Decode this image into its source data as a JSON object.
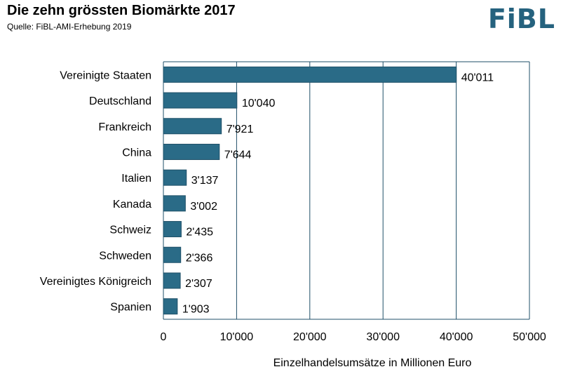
{
  "header": {
    "title": "Die zehn grössten Biomärkte 2017",
    "subtitle": "Quelle: FiBL-AMI-Erhebung 2019",
    "logo_text": "FiBL"
  },
  "colors": {
    "bar": "#2a6b87",
    "bar_stroke": "#1f5068",
    "grid": "#1f4f68",
    "logo": "#25627e"
  },
  "chart_data": {
    "type": "bar",
    "orientation": "horizontal",
    "title": "Die zehn grössten Biomärkte 2017",
    "subtitle": "Quelle: FiBL-AMI-Erhebung 2019",
    "xlabel": "Einzelhandelsumsätze in Millionen Euro",
    "ylabel": "",
    "xlim": [
      0,
      50000
    ],
    "x_ticks": [
      0,
      10000,
      20000,
      30000,
      40000,
      50000
    ],
    "x_tick_labels": [
      "0",
      "10'000",
      "20'000",
      "30'000",
      "40'000",
      "50'000"
    ],
    "grid": "vertical",
    "categories": [
      "Vereinigte Staaten",
      "Deutschland",
      "Frankreich",
      "China",
      "Italien",
      "Kanada",
      "Schweiz",
      "Schweden",
      "Vereinigtes Königreich",
      "Spanien"
    ],
    "values": [
      40011,
      10040,
      7921,
      7644,
      3137,
      3002,
      2435,
      2366,
      2307,
      1903
    ],
    "value_labels": [
      "40'011",
      "10'040",
      "7'921",
      "7'644",
      "3'137",
      "3'002",
      "2'435",
      "2'366",
      "2'307",
      "1'903"
    ]
  }
}
